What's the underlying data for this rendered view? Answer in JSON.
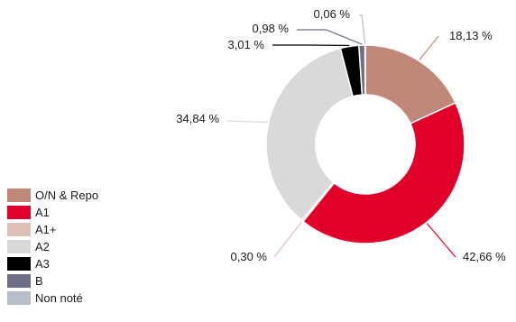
{
  "chart_data": {
    "type": "pie",
    "donut": true,
    "categories": [
      "O/N & Repo",
      "A1",
      "A1+",
      "A2",
      "A3",
      "B",
      "Non noté"
    ],
    "values": [
      18.13,
      42.66,
      0.3,
      34.84,
      3.01,
      0.98,
      0.06
    ],
    "labels": [
      "18,13 %",
      "42,66 %",
      "0,30 %",
      "34,84 %",
      "3,01 %",
      "0,98 %",
      "0,06 %"
    ],
    "colors": [
      "#c08878",
      "#e1002a",
      "#dfc0b6",
      "#d9d9d9",
      "#000000",
      "#6e6e86",
      "#b6bec8"
    ],
    "legend_placement": "bottom-left",
    "title": ""
  }
}
